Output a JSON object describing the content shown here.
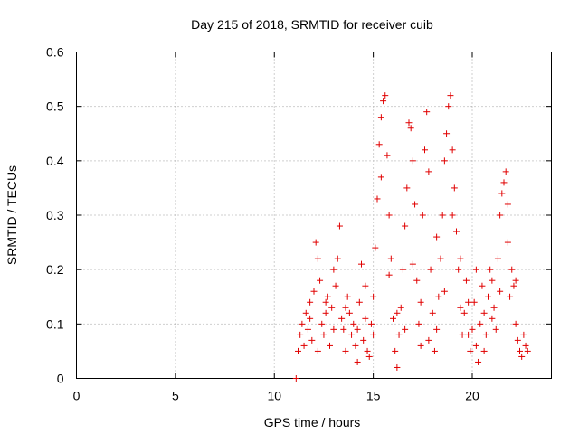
{
  "chart_data": {
    "type": "scatter",
    "title": "Day 215 of 2018, SRMTID for receiver cuib",
    "xlabel": "GPS time / hours",
    "ylabel": "SRMTID / TECUs",
    "xlim": [
      0,
      24
    ],
    "ylim": [
      0,
      0.6
    ],
    "xticks": [
      "0",
      "5",
      "10",
      "15",
      "20"
    ],
    "yticks": [
      "0",
      "0.1",
      "0.2",
      "0.3",
      "0.4",
      "0.5",
      "0.6"
    ],
    "grid": true,
    "marker": "+",
    "color": "#e00000",
    "series": [
      {
        "name": "SRMTID",
        "points": [
          [
            11.1,
            0.0
          ],
          [
            11.2,
            0.05
          ],
          [
            11.3,
            0.08
          ],
          [
            11.4,
            0.1
          ],
          [
            11.5,
            0.06
          ],
          [
            11.6,
            0.12
          ],
          [
            11.7,
            0.09
          ],
          [
            11.8,
            0.14
          ],
          [
            11.9,
            0.07
          ],
          [
            12.0,
            0.16
          ],
          [
            12.1,
            0.25
          ],
          [
            12.2,
            0.22
          ],
          [
            12.3,
            0.18
          ],
          [
            12.4,
            0.1
          ],
          [
            12.5,
            0.08
          ],
          [
            12.6,
            0.12
          ],
          [
            12.7,
            0.15
          ],
          [
            12.8,
            0.06
          ],
          [
            12.9,
            0.13
          ],
          [
            13.0,
            0.2
          ],
          [
            13.1,
            0.17
          ],
          [
            13.2,
            0.22
          ],
          [
            13.3,
            0.28
          ],
          [
            13.4,
            0.11
          ],
          [
            13.5,
            0.09
          ],
          [
            13.6,
            0.05
          ],
          [
            13.7,
            0.15
          ],
          [
            13.8,
            0.12
          ],
          [
            13.9,
            0.08
          ],
          [
            14.0,
            0.1
          ],
          [
            14.1,
            0.06
          ],
          [
            14.2,
            0.09
          ],
          [
            14.3,
            0.14
          ],
          [
            14.4,
            0.21
          ],
          [
            14.5,
            0.07
          ],
          [
            14.6,
            0.11
          ],
          [
            14.7,
            0.05
          ],
          [
            14.8,
            0.04
          ],
          [
            14.9,
            0.1
          ],
          [
            15.0,
            0.15
          ],
          [
            15.1,
            0.24
          ],
          [
            15.2,
            0.33
          ],
          [
            15.3,
            0.43
          ],
          [
            15.4,
            0.48
          ],
          [
            15.5,
            0.51
          ],
          [
            15.6,
            0.52
          ],
          [
            15.7,
            0.41
          ],
          [
            15.8,
            0.3
          ],
          [
            15.9,
            0.22
          ],
          [
            16.0,
            0.11
          ],
          [
            16.1,
            0.05
          ],
          [
            16.2,
            0.02
          ],
          [
            16.3,
            0.08
          ],
          [
            16.4,
            0.13
          ],
          [
            16.5,
            0.2
          ],
          [
            16.6,
            0.28
          ],
          [
            16.7,
            0.35
          ],
          [
            16.8,
            0.47
          ],
          [
            16.9,
            0.46
          ],
          [
            17.0,
            0.4
          ],
          [
            17.1,
            0.32
          ],
          [
            17.2,
            0.18
          ],
          [
            17.3,
            0.1
          ],
          [
            17.4,
            0.06
          ],
          [
            17.5,
            0.3
          ],
          [
            17.6,
            0.42
          ],
          [
            17.7,
            0.49
          ],
          [
            17.8,
            0.38
          ],
          [
            17.9,
            0.2
          ],
          [
            18.0,
            0.12
          ],
          [
            18.1,
            0.05
          ],
          [
            18.2,
            0.09
          ],
          [
            18.3,
            0.15
          ],
          [
            18.4,
            0.22
          ],
          [
            18.5,
            0.3
          ],
          [
            18.6,
            0.4
          ],
          [
            18.7,
            0.45
          ],
          [
            18.8,
            0.5
          ],
          [
            18.9,
            0.52
          ],
          [
            19.0,
            0.42
          ],
          [
            19.1,
            0.35
          ],
          [
            19.2,
            0.27
          ],
          [
            19.3,
            0.2
          ],
          [
            19.4,
            0.13
          ],
          [
            19.5,
            0.08
          ],
          [
            19.6,
            0.12
          ],
          [
            19.7,
            0.18
          ],
          [
            19.8,
            0.08
          ],
          [
            19.9,
            0.05
          ],
          [
            20.0,
            0.09
          ],
          [
            20.1,
            0.14
          ],
          [
            20.2,
            0.06
          ],
          [
            20.3,
            0.03
          ],
          [
            20.4,
            0.1
          ],
          [
            20.5,
            0.17
          ],
          [
            20.6,
            0.12
          ],
          [
            20.7,
            0.08
          ],
          [
            20.8,
            0.15
          ],
          [
            20.9,
            0.2
          ],
          [
            21.0,
            0.18
          ],
          [
            21.1,
            0.13
          ],
          [
            21.2,
            0.09
          ],
          [
            21.3,
            0.22
          ],
          [
            21.4,
            0.3
          ],
          [
            21.5,
            0.34
          ],
          [
            21.6,
            0.36
          ],
          [
            21.7,
            0.38
          ],
          [
            21.8,
            0.25
          ],
          [
            21.9,
            0.15
          ],
          [
            22.0,
            0.2
          ],
          [
            22.1,
            0.17
          ],
          [
            22.2,
            0.1
          ],
          [
            22.3,
            0.07
          ],
          [
            22.4,
            0.05
          ],
          [
            22.5,
            0.04
          ],
          [
            22.6,
            0.08
          ],
          [
            22.7,
            0.06
          ],
          [
            22.8,
            0.05
          ],
          [
            11.8,
            0.11
          ],
          [
            12.2,
            0.05
          ],
          [
            12.6,
            0.14
          ],
          [
            13.0,
            0.09
          ],
          [
            13.6,
            0.13
          ],
          [
            14.2,
            0.03
          ],
          [
            14.6,
            0.17
          ],
          [
            15.0,
            0.08
          ],
          [
            15.4,
            0.37
          ],
          [
            15.8,
            0.19
          ],
          [
            16.2,
            0.12
          ],
          [
            16.6,
            0.09
          ],
          [
            17.0,
            0.21
          ],
          [
            17.4,
            0.14
          ],
          [
            17.8,
            0.07
          ],
          [
            18.2,
            0.26
          ],
          [
            18.6,
            0.16
          ],
          [
            19.0,
            0.3
          ],
          [
            19.4,
            0.22
          ],
          [
            19.8,
            0.14
          ],
          [
            20.2,
            0.2
          ],
          [
            20.6,
            0.05
          ],
          [
            21.0,
            0.11
          ],
          [
            21.4,
            0.16
          ],
          [
            21.8,
            0.32
          ],
          [
            22.2,
            0.18
          ]
        ]
      }
    ]
  }
}
